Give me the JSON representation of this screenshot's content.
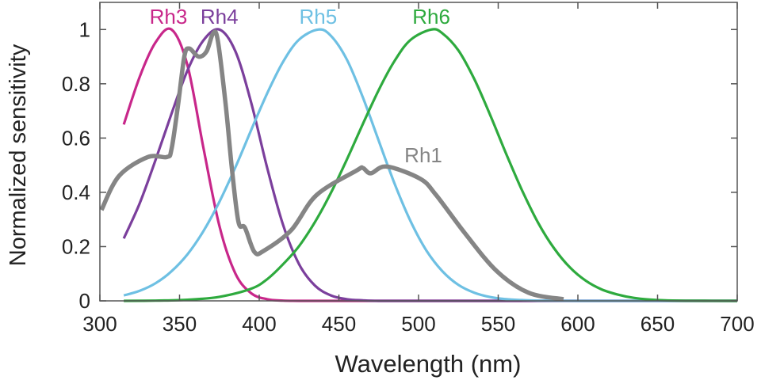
{
  "chart_data": {
    "type": "line",
    "title": "",
    "xlabel": "Wavelength (nm)",
    "ylabel": "Normalized sensitivity",
    "xlim": [
      300,
      700
    ],
    "ylim": [
      0,
      1.1
    ],
    "xticks": [
      300,
      350,
      400,
      450,
      500,
      550,
      600,
      650,
      700
    ],
    "xtick_labels": [
      "300",
      "350",
      "400",
      "450",
      "500",
      "550",
      "600",
      "650",
      "700"
    ],
    "yticks": [
      0,
      0.2,
      0.4,
      0.6,
      0.8,
      1
    ],
    "ytick_labels": [
      "0",
      "0.2",
      "0.4",
      "0.6",
      "0.8",
      "1"
    ],
    "grid": false,
    "legend": "labels placed directly on curves",
    "series": [
      {
        "name": "Rh3",
        "color": "#c8278a",
        "x": [
          315,
          325,
          335,
          345,
          355,
          365,
          375,
          385,
          395,
          405,
          415,
          425,
          450,
          500,
          550,
          600,
          650,
          700
        ],
        "y": [
          0.65,
          0.826,
          0.953,
          1,
          0.867,
          0.564,
          0.276,
          0.101,
          0.028,
          0.006,
          0.001,
          0,
          0,
          0,
          0,
          0,
          0,
          0
        ]
      },
      {
        "name": "Rh4",
        "color": "#7b3f9c",
        "x": [
          315,
          325,
          335,
          345,
          355,
          365,
          375,
          385,
          395,
          405,
          415,
          425,
          435,
          445,
          455,
          465,
          475,
          500,
          550,
          600,
          650,
          700
        ],
        "y": [
          0.23,
          0.36,
          0.52,
          0.69,
          0.85,
          0.96,
          1,
          0.92,
          0.73,
          0.49,
          0.28,
          0.135,
          0.056,
          0.02,
          0.006,
          0.002,
          0,
          0,
          0,
          0,
          0,
          0
        ]
      },
      {
        "name": "Rh5",
        "color": "#6ec0e3",
        "x": [
          315,
          325,
          335,
          345,
          355,
          365,
          375,
          385,
          395,
          405,
          415,
          425,
          437,
          445,
          455,
          465,
          475,
          485,
          495,
          505,
          515,
          525,
          535,
          545,
          555,
          565,
          575,
          600,
          650,
          700
        ],
        "y": [
          0.02,
          0.037,
          0.065,
          0.109,
          0.172,
          0.257,
          0.365,
          0.492,
          0.63,
          0.765,
          0.881,
          0.963,
          1,
          0.977,
          0.889,
          0.751,
          0.59,
          0.431,
          0.293,
          0.185,
          0.109,
          0.059,
          0.03,
          0.014,
          0.006,
          0.003,
          0.001,
          0,
          0,
          0
        ]
      },
      {
        "name": "Rh6",
        "color": "#2eaa3e",
        "x": [
          315,
          335,
          355,
          375,
          395,
          405,
          415,
          425,
          435,
          445,
          455,
          465,
          475,
          485,
          495,
          508,
          515,
          525,
          535,
          545,
          555,
          565,
          575,
          585,
          595,
          605,
          615,
          625,
          635,
          645,
          655,
          670,
          700
        ],
        "y": [
          0,
          0.001,
          0.004,
          0.015,
          0.045,
          0.08,
          0.135,
          0.202,
          0.291,
          0.398,
          0.521,
          0.651,
          0.777,
          0.885,
          0.962,
          1,
          0.986,
          0.923,
          0.817,
          0.684,
          0.542,
          0.407,
          0.288,
          0.194,
          0.123,
          0.074,
          0.042,
          0.023,
          0.011,
          0.005,
          0.002,
          0.0005,
          0
        ]
      },
      {
        "name": "Rh1",
        "color": "#858585",
        "x": [
          301,
          312,
          330,
          342,
          345,
          349,
          353,
          356,
          362,
          367,
          371,
          374,
          379,
          383,
          387,
          391,
          397,
          403,
          420,
          436,
          461,
          465,
          470,
          480,
          501,
          511,
          529,
          549,
          569,
          591
        ],
        "y": [
          0.335,
          0.46,
          0.53,
          0.53,
          0.56,
          0.72,
          0.9,
          0.93,
          0.9,
          0.92,
          0.985,
          0.96,
          0.72,
          0.48,
          0.29,
          0.27,
          0.18,
          0.185,
          0.26,
          0.39,
          0.48,
          0.49,
          0.47,
          0.495,
          0.45,
          0.39,
          0.25,
          0.11,
          0.03,
          0.006
        ]
      }
    ],
    "annotations": [
      {
        "text": "Rh3",
        "x": 343,
        "y": 1.05,
        "color": "#c8278a"
      },
      {
        "text": "Rh4",
        "x": 375,
        "y": 1.05,
        "color": "#7b3f9c"
      },
      {
        "text": "Rh5",
        "x": 437,
        "y": 1.05,
        "color": "#6ec0e3"
      },
      {
        "text": "Rh6",
        "x": 508,
        "y": 1.05,
        "color": "#2eaa3e"
      },
      {
        "text": "Rh1",
        "x": 503,
        "y": 0.54,
        "color": "#858585"
      }
    ]
  }
}
